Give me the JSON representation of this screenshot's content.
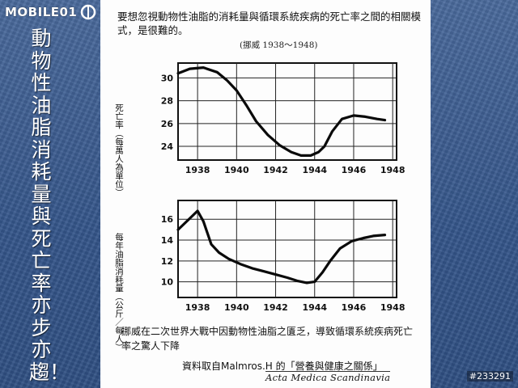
{
  "logo": {
    "text": "MOBILE01"
  },
  "side_title": "動物性油脂消耗量與死亡率亦步亦趨！",
  "document": {
    "heading": "要想忽視動物性油脂的消耗量與循環系統疾病的死亡率之間的相關模式，是很難的。",
    "source_note": "(挪威 1938～1948)",
    "caption": "挪威在二次世界大戰中因動物性油脂之匱乏，導致循環系統疾病死亡率之驚人下降",
    "citation": "資料取自Malmros.H 的「營養與健康之關係」",
    "journal": "Acta Medica Scandinavia"
  },
  "watermark": "#233291",
  "colors": {
    "background": "#3a5a8c",
    "paper": "#fdfdfd",
    "ink": "#111111"
  },
  "chart_data": [
    {
      "type": "line",
      "ylabel": "死亡率（每萬人為單位）",
      "x_ticks": [
        "1938",
        "1940",
        "1942",
        "1944",
        "1946",
        "1948"
      ],
      "y_ticks": [
        30,
        28,
        26,
        24
      ],
      "xlim": [
        1937.0,
        1948.2
      ],
      "ylim": [
        22.8,
        31.3
      ],
      "grid": true,
      "series": [
        {
          "x": [
            1937.0,
            1937.6,
            1938.3,
            1939.0,
            1939.5,
            1940.0,
            1940.5,
            1941.0,
            1941.6,
            1942.2,
            1942.8,
            1943.3,
            1943.8,
            1944.2,
            1944.5,
            1944.9,
            1945.4,
            1946.0,
            1946.6,
            1947.2,
            1947.6
          ],
          "y": [
            30.4,
            30.8,
            30.9,
            30.5,
            29.8,
            28.9,
            27.6,
            26.2,
            25.0,
            24.1,
            23.5,
            23.2,
            23.2,
            23.5,
            24.0,
            25.3,
            26.4,
            26.7,
            26.6,
            26.4,
            26.3
          ]
        }
      ]
    },
    {
      "type": "line",
      "ylabel": "每年油脂消耗量（公斤／每人）",
      "x_ticks": [
        "1938",
        "1940",
        "1942",
        "1944",
        "1946",
        "1948"
      ],
      "y_ticks": [
        16,
        14,
        12,
        10
      ],
      "xlim": [
        1937.0,
        1948.2
      ],
      "ylim": [
        8.5,
        17.8
      ],
      "grid": true,
      "series": [
        {
          "x": [
            1937.0,
            1937.5,
            1938.0,
            1938.3,
            1938.7,
            1939.1,
            1939.6,
            1940.2,
            1940.8,
            1941.4,
            1942.0,
            1942.6,
            1943.1,
            1943.6,
            1944.0,
            1944.4,
            1944.8,
            1945.3,
            1945.9,
            1946.5,
            1947.0,
            1947.6
          ],
          "y": [
            15.0,
            15.9,
            16.8,
            15.8,
            13.6,
            12.8,
            12.2,
            11.7,
            11.3,
            11.0,
            10.7,
            10.4,
            10.1,
            9.9,
            10.0,
            10.9,
            12.0,
            13.2,
            13.9,
            14.2,
            14.4,
            14.5
          ]
        }
      ]
    }
  ]
}
